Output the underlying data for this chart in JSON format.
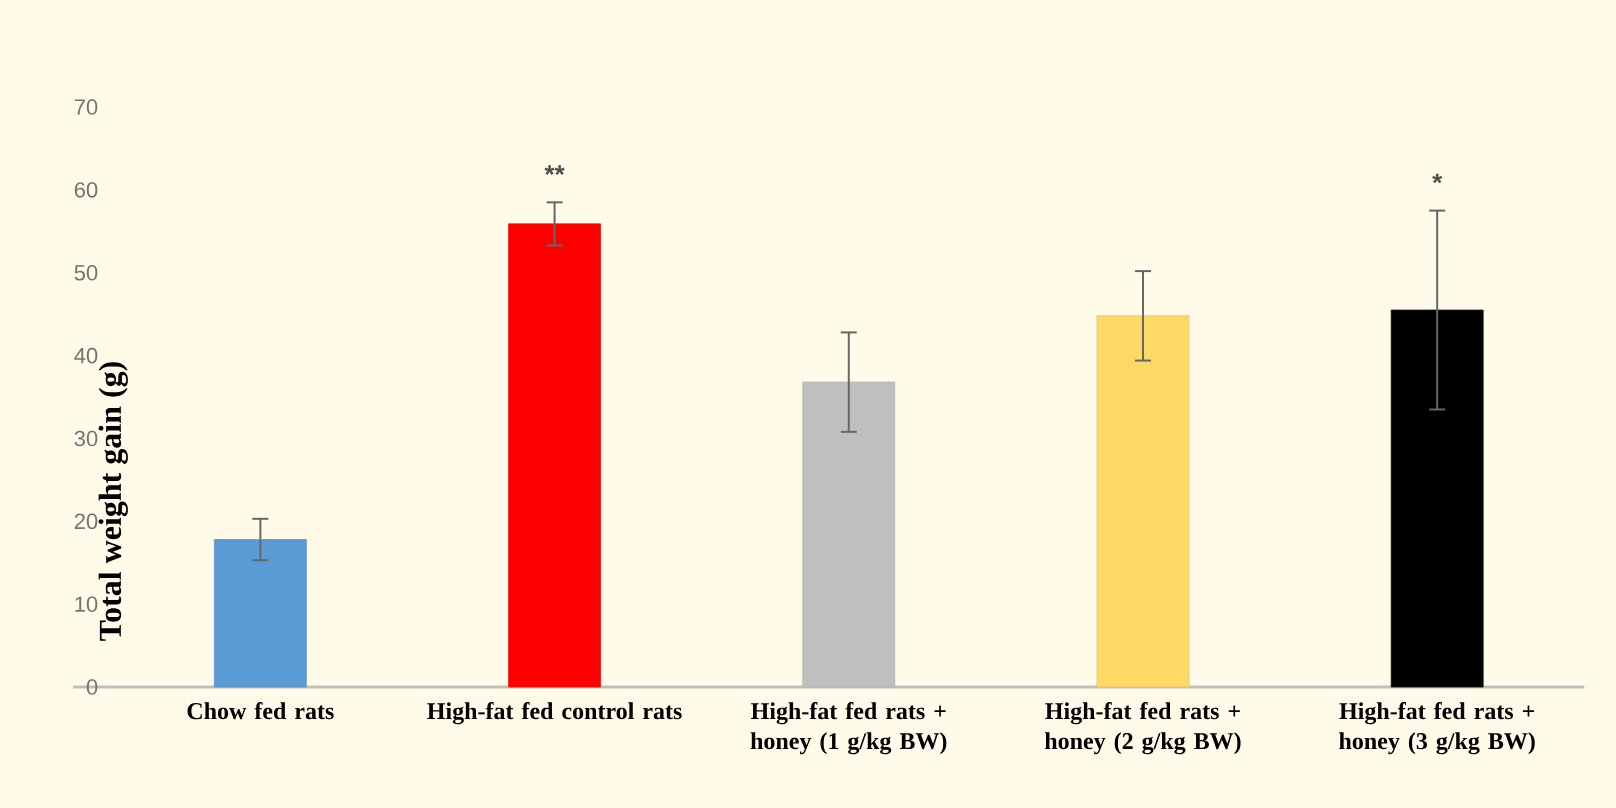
{
  "chart_data": {
    "type": "bar",
    "ylabel": "Total weight gain (g)",
    "categories": [
      "Chow fed rats",
      "High-fat fed control rats",
      "High-fat fed rats + honey (1 g/kg BW)",
      "High-fat fed rats + honey (2 g/kg BW)",
      "High-fat fed rats + honey (3 g/kg BW)"
    ],
    "values": [
      17.8,
      55.9,
      36.8,
      44.8,
      45.5
    ],
    "errors": [
      2.5,
      2.6,
      6,
      5.4,
      12
    ],
    "colors": [
      "#5b9bd5",
      "#ff0000",
      "#bfbfbf",
      "#ffd966",
      "#000000"
    ],
    "ylim": [
      0,
      70
    ],
    "yticks": [
      0,
      10,
      20,
      30,
      40,
      50,
      60,
      70
    ],
    "annotations": [
      "**",
      "*"
    ]
  }
}
